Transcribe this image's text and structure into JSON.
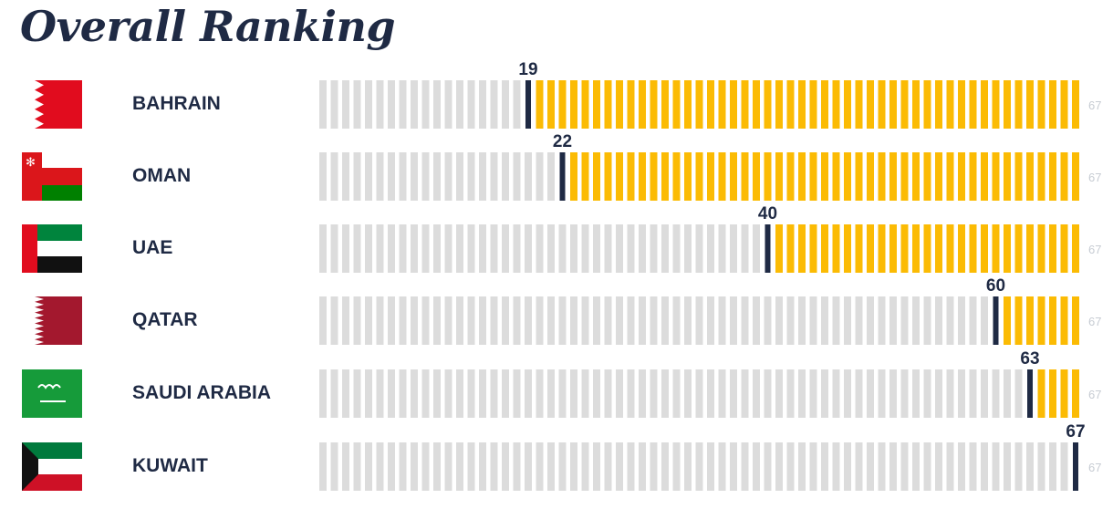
{
  "title": "Overall Ranking",
  "colors": {
    "title": "#1f2a44",
    "empty_bar": "#dcdcdc",
    "filled_bar": "#fbbb04",
    "marker": "#1f2a44",
    "max_label": "#c7ccd3"
  },
  "chart_data": {
    "type": "bar",
    "title": "Overall Ranking",
    "xlim": [
      1,
      67
    ],
    "rows": [
      {
        "country": "BAHRAIN",
        "rank": 19,
        "max": 67,
        "flag": "bahrain-flag"
      },
      {
        "country": "OMAN",
        "rank": 22,
        "max": 67,
        "flag": "oman-flag"
      },
      {
        "country": "UAE",
        "rank": 40,
        "max": 67,
        "flag": "uae-flag"
      },
      {
        "country": "QATAR",
        "rank": 60,
        "max": 67,
        "flag": "qatar-flag"
      },
      {
        "country": "SAUDI ARABIA",
        "rank": 63,
        "max": 67,
        "flag": "saudi-arabia-flag"
      },
      {
        "country": "KUWAIT",
        "rank": 67,
        "max": 67,
        "flag": "kuwait-flag"
      }
    ]
  }
}
